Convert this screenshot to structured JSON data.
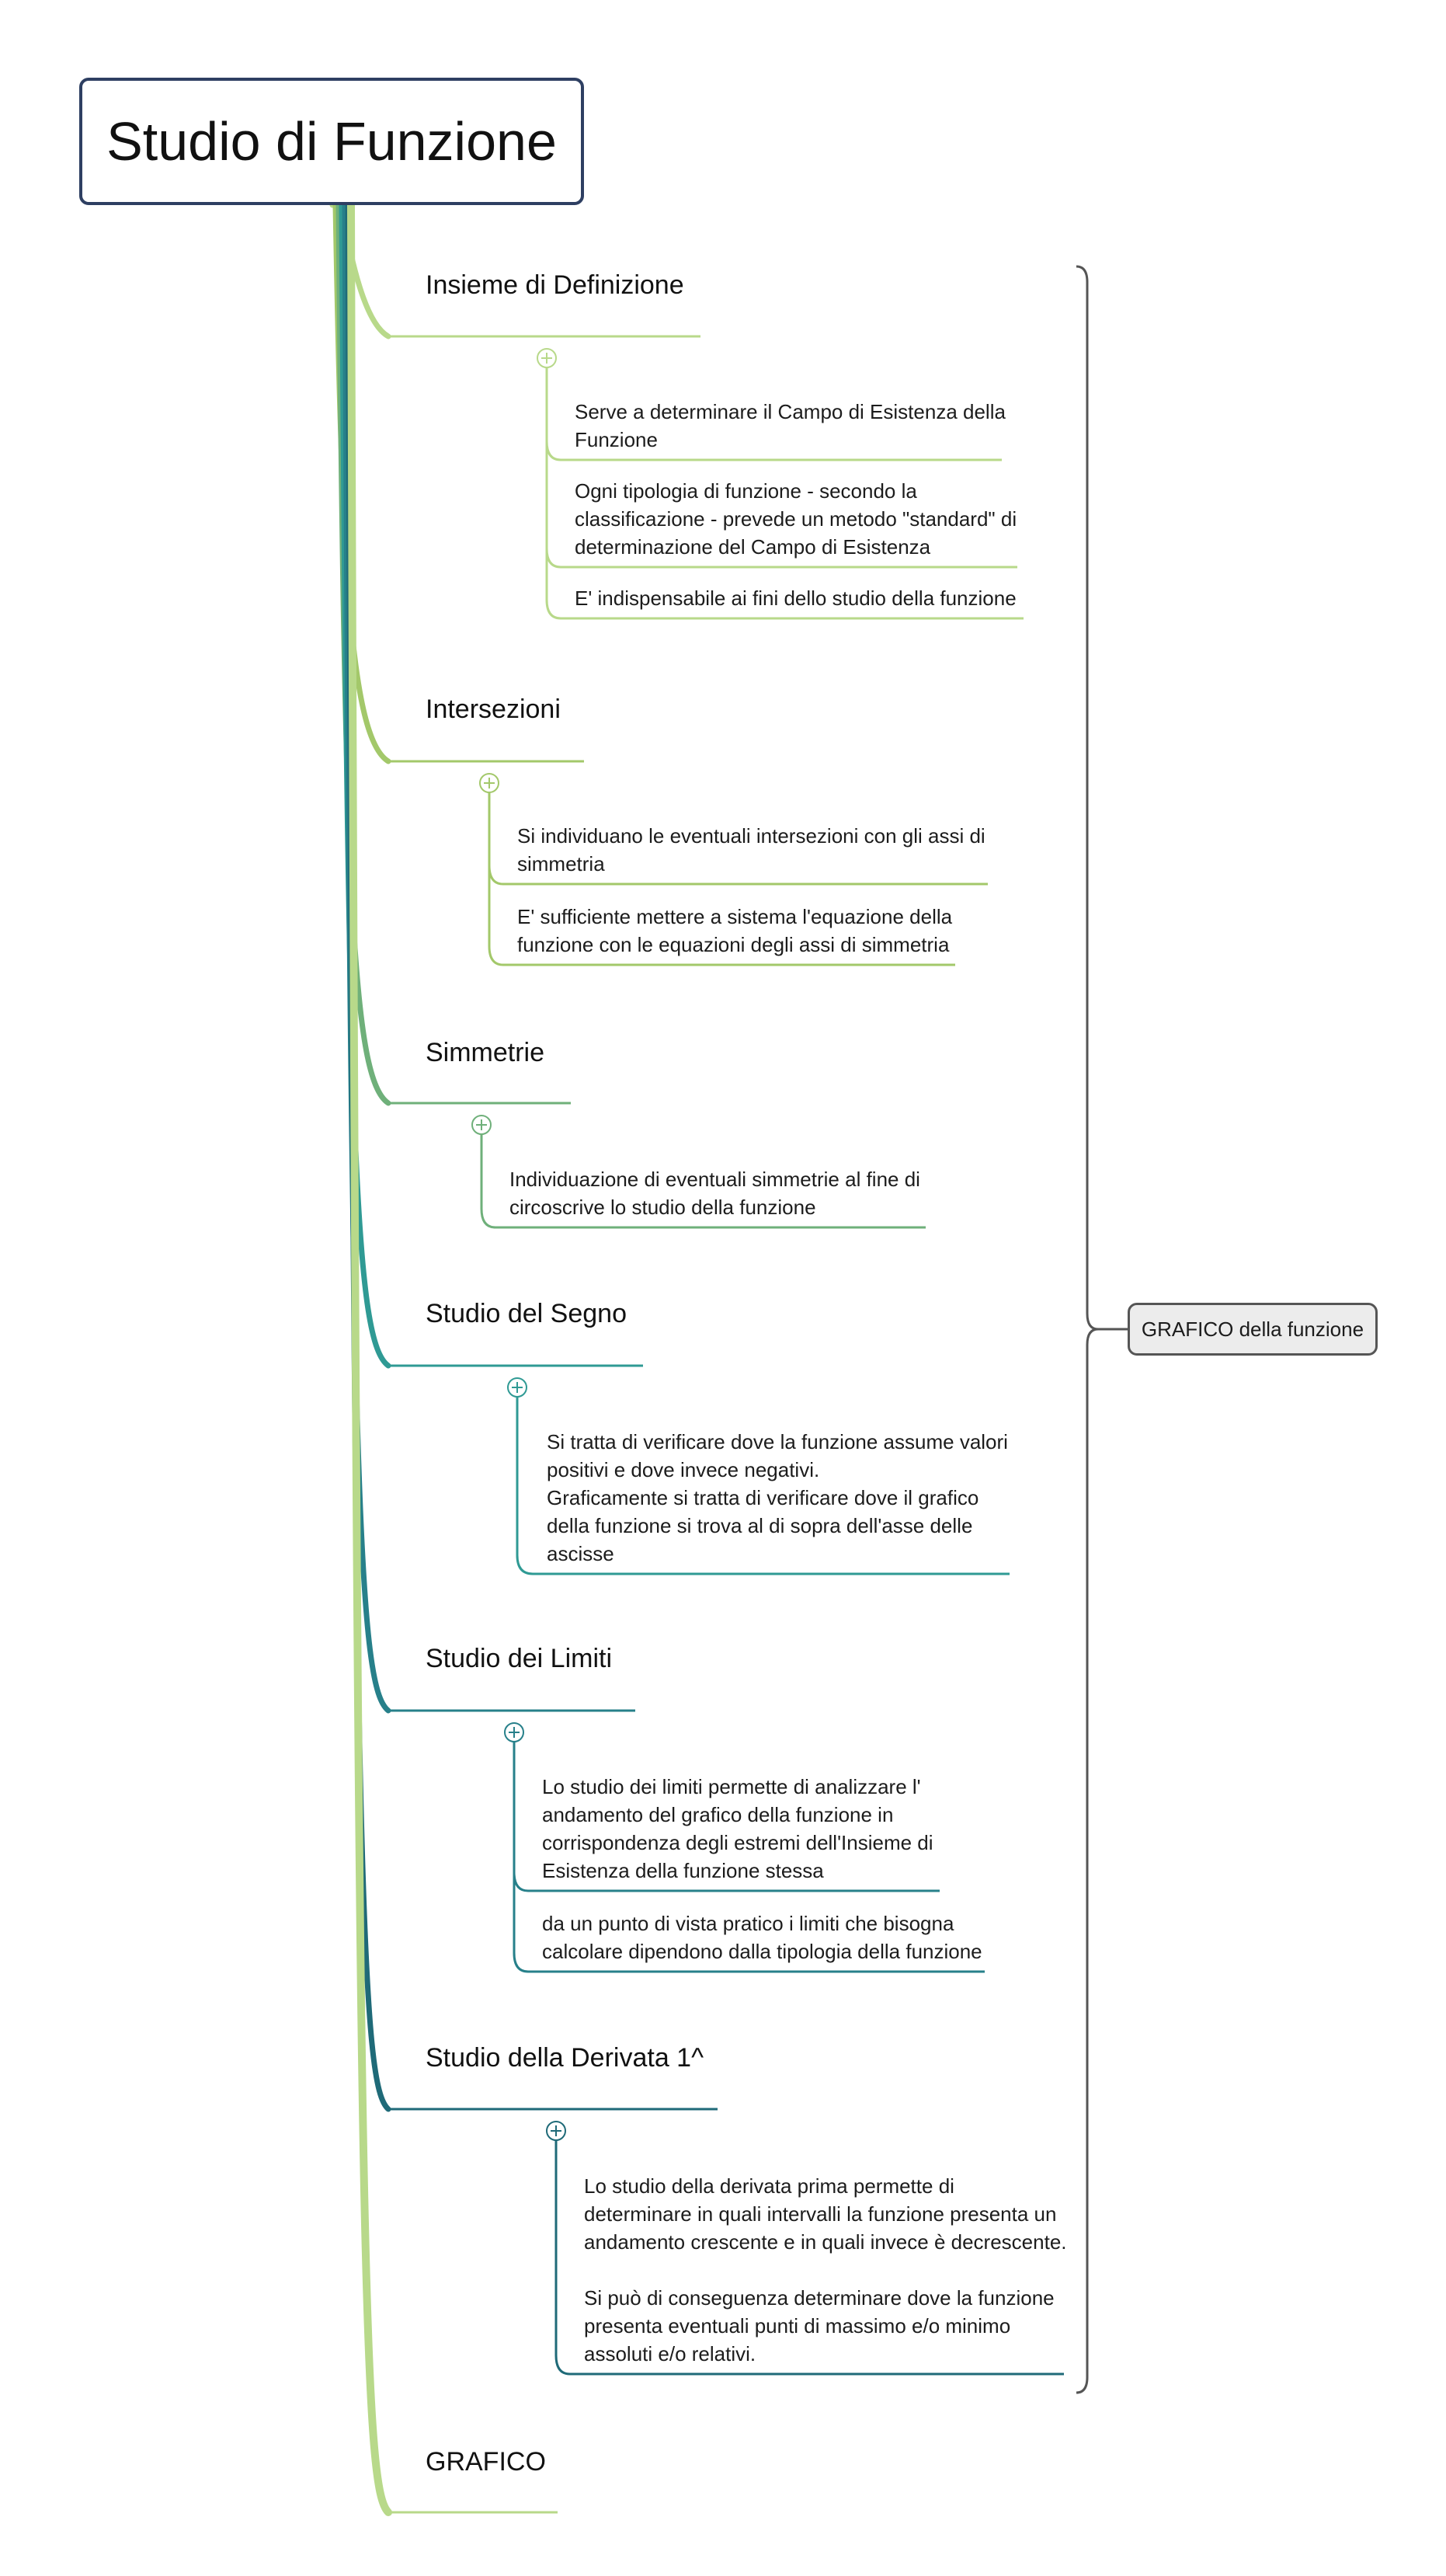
{
  "root": {
    "title": "Studio di Funzione"
  },
  "colors": {
    "root_border": "#2e3f62",
    "branch_1": "#b8d98a",
    "branch_2": "#a3c86a",
    "branch_3": "#6fb07a",
    "branch_4": "#2f9a94",
    "branch_5": "#27808a",
    "branch_6": "#1f6a78",
    "branch_7": "#b8d98a",
    "summary_bracket": "#555555",
    "summary_fill": "#ececec"
  },
  "branches": [
    {
      "title": "Insieme di Definizione",
      "collapse_icon": "circle-plus-icon",
      "leaves": [
        {
          "lines": [
            "Serve a determinare il Campo di Esistenza della",
            "Funzione"
          ]
        },
        {
          "lines": [
            "Ogni tipologia di funzione - secondo la",
            "classificazione - prevede un metodo \"standard\" di",
            "determinazione del Campo di Esistenza"
          ]
        },
        {
          "lines": [
            "E' indispensabile ai fini dello studio della funzione"
          ]
        }
      ]
    },
    {
      "title": "Intersezioni",
      "collapse_icon": "circle-plus-icon",
      "leaves": [
        {
          "lines": [
            "Si individuano le eventuali intersezioni con gli assi di",
            "simmetria"
          ]
        },
        {
          "lines": [
            "E' sufficiente mettere a sistema l'equazione della",
            "funzione con le equazioni degli assi di simmetria"
          ]
        }
      ]
    },
    {
      "title": "Simmetrie",
      "collapse_icon": "circle-plus-icon",
      "leaves": [
        {
          "lines": [
            "Individuazione di eventuali simmetrie al fine di",
            "circoscrive lo studio della funzione"
          ]
        }
      ]
    },
    {
      "title": "Studio del Segno",
      "collapse_icon": "circle-plus-icon",
      "leaves": [
        {
          "lines": [
            "Si tratta di verificare dove la funzione assume valori",
            "positivi e dove invece negativi.",
            "Graficamente si tratta di verificare dove il grafico",
            "della funzione si trova al di sopra dell'asse delle",
            "ascisse"
          ]
        }
      ]
    },
    {
      "title": "Studio dei Limiti",
      "collapse_icon": "circle-plus-icon",
      "leaves": [
        {
          "lines": [
            "Lo studio dei limiti permette di analizzare l'",
            "andamento del grafico della funzione in",
            "corrispondenza degli estremi dell'Insieme di",
            "Esistenza della funzione stessa"
          ]
        },
        {
          "lines": [
            "da un punto di vista pratico i limiti che bisogna",
            "calcolare dipendono dalla tipologia della funzione"
          ]
        }
      ]
    },
    {
      "title": "Studio della Derivata 1^",
      "collapse_icon": "circle-plus-icon",
      "leaves": [
        {
          "lines": [
            "Lo studio della derivata prima permette di",
            "determinare in quali intervalli la funzione presenta un",
            "andamento crescente e in quali invece è decrescente.",
            "",
            "Si può di conseguenza determinare dove la funzione",
            "presenta eventuali punti di massimo e/o minimo",
            "assoluti e/o relativi."
          ]
        }
      ]
    },
    {
      "title": "GRAFICO",
      "leaves": []
    }
  ],
  "summary": {
    "label": "GRAFICO della funzione"
  }
}
